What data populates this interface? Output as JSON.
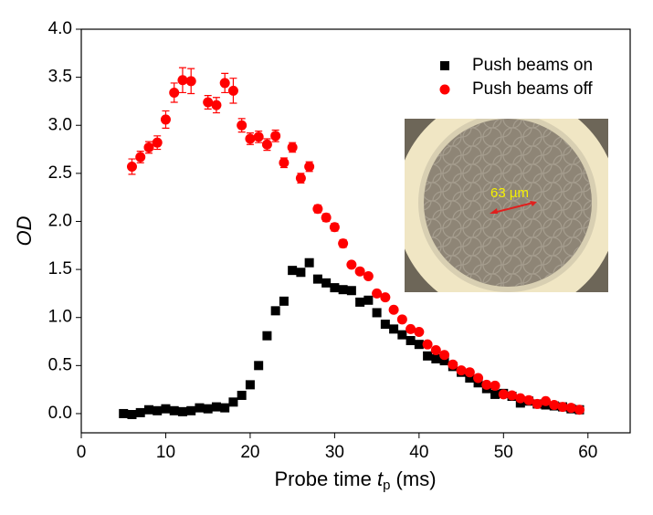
{
  "chart_data": {
    "type": "scatter",
    "xlabel": [
      "Probe time ",
      "t",
      "p",
      " (ms)"
    ],
    "ylabel": "OD",
    "xlim": [
      0,
      65
    ],
    "ylim": [
      -0.2,
      4.0
    ],
    "xticks": [
      0,
      10,
      20,
      30,
      40,
      50,
      60
    ],
    "yticks": [
      {
        "value": 0,
        "label": "0.0"
      },
      0.5,
      {
        "value": 1,
        "label": "1.0"
      },
      1.5,
      {
        "value": 2,
        "label": "2.0"
      },
      2.5,
      {
        "value": 3,
        "label": "3.0"
      },
      3.5,
      {
        "value": 4,
        "label": "4.0"
      }
    ],
    "legend": "upper right",
    "inset_label": "63 µm",
    "series": [
      {
        "name": "Push beams on",
        "color": "#000000",
        "marker": "square",
        "x": [
          5,
          6,
          7,
          8,
          9,
          10,
          11,
          12,
          13,
          14,
          15,
          16,
          17,
          18,
          19,
          20,
          21,
          22,
          23,
          24,
          25,
          26,
          27,
          28,
          29,
          30,
          31,
          32,
          33,
          34,
          35,
          36,
          37,
          38,
          39,
          40,
          41,
          42,
          43,
          44,
          45,
          46,
          47,
          48,
          49,
          50,
          51,
          52,
          53,
          54,
          55,
          56,
          57,
          58,
          59
        ],
        "values": [
          0.0,
          -0.01,
          0.01,
          0.04,
          0.03,
          0.05,
          0.03,
          0.02,
          0.03,
          0.06,
          0.05,
          0.07,
          0.06,
          0.12,
          0.19,
          0.3,
          0.5,
          0.81,
          1.07,
          1.17,
          1.49,
          1.47,
          1.57,
          1.4,
          1.36,
          1.31,
          1.29,
          1.28,
          1.16,
          1.18,
          1.05,
          0.93,
          0.88,
          0.82,
          0.76,
          0.72,
          0.6,
          0.57,
          0.55,
          0.49,
          0.43,
          0.37,
          0.32,
          0.26,
          0.2,
          0.21,
          0.18,
          0.11,
          0.13,
          0.1,
          0.09,
          0.08,
          0.07,
          0.05,
          0.04
        ]
      },
      {
        "name": "Push beams off",
        "color": "#ff0000",
        "marker": "circle",
        "x": [
          6,
          7,
          8,
          9,
          10,
          11,
          12,
          13,
          15,
          16,
          17,
          18,
          19,
          20,
          21,
          22,
          23,
          24,
          25,
          26,
          27,
          28,
          29,
          30,
          31,
          32,
          33,
          34,
          35,
          36,
          37,
          38,
          39,
          40,
          41,
          42,
          43,
          44,
          45,
          46,
          47,
          48,
          49,
          50,
          51,
          52,
          53,
          54,
          55,
          56,
          57,
          58,
          59
        ],
        "values": [
          2.57,
          2.67,
          2.77,
          2.82,
          3.06,
          3.34,
          3.47,
          3.46,
          3.24,
          3.21,
          3.44,
          3.36,
          3.0,
          2.86,
          2.88,
          2.8,
          2.89,
          2.61,
          2.77,
          2.45,
          2.57,
          2.13,
          2.04,
          1.94,
          1.77,
          1.55,
          1.48,
          1.43,
          1.25,
          1.21,
          1.08,
          0.98,
          0.88,
          0.85,
          0.72,
          0.66,
          0.61,
          0.51,
          0.45,
          0.43,
          0.37,
          0.3,
          0.29,
          0.2,
          0.19,
          0.16,
          0.14,
          0.1,
          0.13,
          0.09,
          0.07,
          0.06,
          0.04
        ],
        "errors": [
          0.08,
          0.06,
          0.06,
          0.07,
          0.09,
          0.1,
          0.13,
          0.13,
          0.07,
          0.08,
          0.1,
          0.13,
          0.07,
          0.06,
          0.06,
          0.06,
          0.06,
          0.05,
          0.05,
          0.05,
          0.05,
          0.04,
          0.04,
          0.04,
          0.04,
          0.03,
          0.03,
          0.03,
          0.03,
          0.03,
          0.03,
          0.03,
          0.03,
          0.03,
          0.03,
          0.03,
          0.03,
          0.03,
          0.03,
          0.03,
          0.03,
          0.03,
          0.03,
          0.03,
          0.03,
          0.03,
          0.03,
          0.03,
          0.03,
          0.03,
          0.03,
          0.03,
          0.03
        ]
      }
    ]
  }
}
